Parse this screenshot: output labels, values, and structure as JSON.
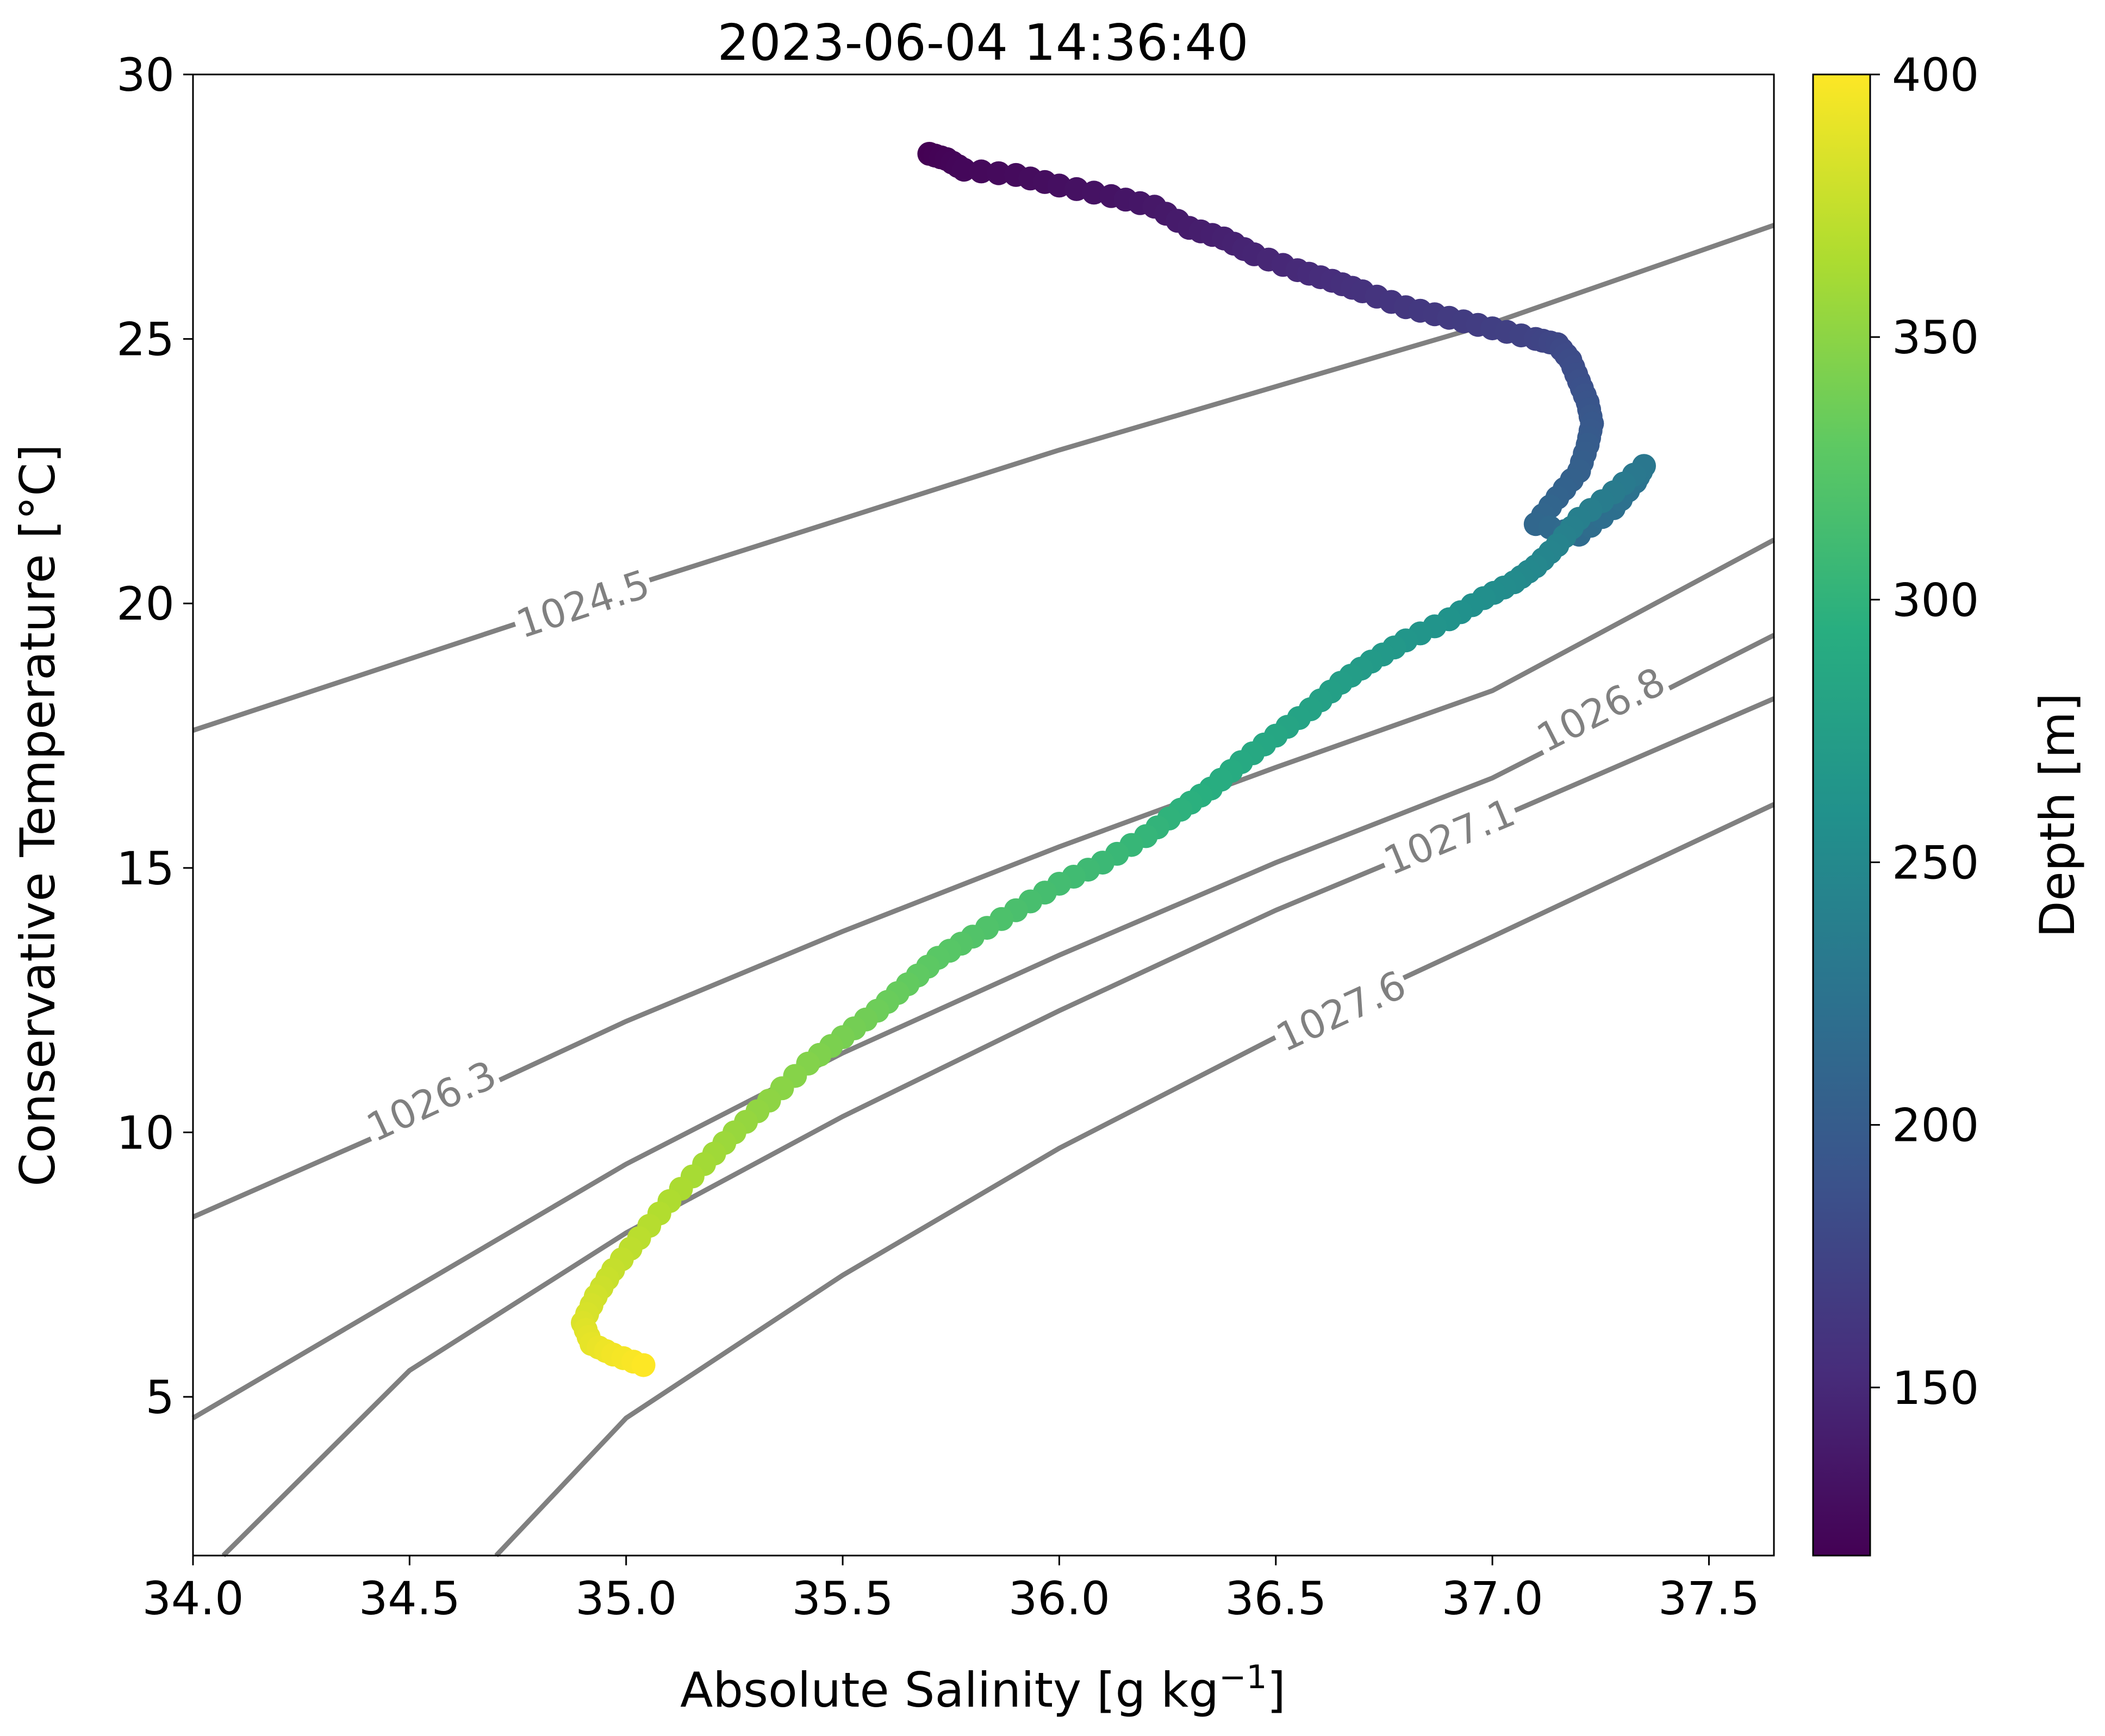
{
  "chart_data": {
    "type": "scatter",
    "title": "2023-06-04 14:36:40",
    "xlabel": "Absolute Salinity [g kg",
    "xlabel_sup": "−1",
    "xlabel_end": "]",
    "ylabel": "Conservative Temperature [°C]",
    "xlim": [
      34.0,
      37.65
    ],
    "ylim": [
      2.0,
      30.0
    ],
    "xticks": [
      34.0,
      34.5,
      35.0,
      35.5,
      36.0,
      36.5,
      37.0,
      37.5
    ],
    "xtick_labels": [
      "34.0",
      "34.5",
      "35.0",
      "35.5",
      "36.0",
      "36.5",
      "37.0",
      "37.5"
    ],
    "yticks": [
      5,
      10,
      15,
      20,
      25,
      30
    ],
    "ytick_labels": [
      "5",
      "10",
      "15",
      "20",
      "25",
      "30"
    ],
    "grid": false,
    "colorbar": {
      "label": "Depth [m]",
      "colormap": "viridis",
      "range": [
        118,
        400
      ],
      "ticks": [
        150,
        200,
        250,
        300,
        350,
        400
      ],
      "tick_labels": [
        "150",
        "200",
        "250",
        "300",
        "350",
        "400"
      ]
    },
    "isopycnals": [
      {
        "label": "1024.5",
        "points": [
          [
            34.0,
            17.6
          ],
          [
            34.5,
            18.95
          ],
          [
            35.0,
            20.3
          ],
          [
            35.5,
            21.6
          ],
          [
            36.0,
            22.9
          ],
          [
            36.5,
            24.1
          ],
          [
            37.0,
            25.3
          ],
          [
            37.65,
            27.15
          ]
        ],
        "label_at": [
          34.9,
          20.0
        ]
      },
      {
        "label": "1026.3",
        "points": [
          [
            34.0,
            8.4
          ],
          [
            34.5,
            10.2
          ],
          [
            35.0,
            12.1
          ],
          [
            35.5,
            13.8
          ],
          [
            36.0,
            15.4
          ],
          [
            36.5,
            16.9
          ],
          [
            37.0,
            18.35
          ],
          [
            37.65,
            21.2
          ]
        ],
        "label_at": [
          34.55,
          10.6
        ]
      },
      {
        "label": "1026.8",
        "points": [
          [
            34.0,
            4.6
          ],
          [
            34.5,
            7.0
          ],
          [
            35.0,
            9.4
          ],
          [
            35.5,
            11.5
          ],
          [
            36.0,
            13.35
          ],
          [
            36.5,
            15.1
          ],
          [
            37.0,
            16.7
          ],
          [
            37.65,
            19.4
          ]
        ],
        "label_at": [
          37.25,
          18.0
        ]
      },
      {
        "label": "1027.1",
        "points": [
          [
            34.07,
            2.0
          ],
          [
            34.5,
            5.5
          ],
          [
            35.0,
            8.1
          ],
          [
            35.5,
            10.3
          ],
          [
            36.0,
            12.3
          ],
          [
            36.5,
            14.2
          ],
          [
            37.0,
            15.9
          ],
          [
            37.65,
            18.2
          ]
        ],
        "label_at": [
          36.9,
          15.6
        ]
      },
      {
        "label": "1027.6",
        "points": [
          [
            34.7,
            2.0
          ],
          [
            35.0,
            4.6
          ],
          [
            35.5,
            7.3
          ],
          [
            36.0,
            9.7
          ],
          [
            36.5,
            11.8
          ],
          [
            37.0,
            13.7
          ],
          [
            37.65,
            16.2
          ]
        ],
        "label_at": [
          36.65,
          12.3
        ]
      }
    ],
    "profile": {
      "name": "",
      "depth_range": [
        118,
        400
      ],
      "points": [
        [
          35.7,
          28.5
        ],
        [
          35.74,
          28.4
        ],
        [
          35.78,
          28.2
        ],
        [
          35.9,
          28.1
        ],
        [
          36.0,
          27.9
        ],
        [
          36.12,
          27.7
        ],
        [
          36.22,
          27.5
        ],
        [
          36.3,
          27.1
        ],
        [
          36.38,
          26.9
        ],
        [
          36.45,
          26.6
        ],
        [
          36.55,
          26.3
        ],
        [
          36.63,
          26.1
        ],
        [
          36.7,
          25.9
        ],
        [
          36.8,
          25.6
        ],
        [
          36.9,
          25.4
        ],
        [
          37.0,
          25.2
        ],
        [
          37.1,
          25.0
        ],
        [
          37.15,
          24.9
        ],
        [
          37.18,
          24.6
        ],
        [
          37.2,
          24.2
        ],
        [
          37.22,
          23.8
        ],
        [
          37.23,
          23.4
        ],
        [
          37.22,
          23.0
        ],
        [
          37.2,
          22.5
        ],
        [
          37.15,
          22.0
        ],
        [
          37.1,
          21.5
        ],
        [
          37.2,
          21.3
        ],
        [
          37.28,
          21.8
        ],
        [
          37.33,
          22.3
        ],
        [
          37.35,
          22.6
        ],
        [
          37.28,
          22.1
        ],
        [
          37.2,
          21.6
        ],
        [
          37.15,
          21.1
        ],
        [
          37.1,
          20.7
        ],
        [
          37.05,
          20.4
        ],
        [
          36.98,
          20.1
        ],
        [
          36.9,
          19.7
        ],
        [
          36.8,
          19.3
        ],
        [
          36.72,
          18.9
        ],
        [
          36.65,
          18.5
        ],
        [
          36.58,
          18.0
        ],
        [
          36.5,
          17.5
        ],
        [
          36.42,
          17.0
        ],
        [
          36.35,
          16.5
        ],
        [
          36.28,
          16.1
        ],
        [
          36.2,
          15.6
        ],
        [
          36.1,
          15.1
        ],
        [
          36.0,
          14.7
        ],
        [
          35.9,
          14.2
        ],
        [
          35.8,
          13.7
        ],
        [
          35.72,
          13.3
        ],
        [
          35.65,
          12.8
        ],
        [
          35.58,
          12.3
        ],
        [
          35.5,
          11.8
        ],
        [
          35.42,
          11.3
        ],
        [
          35.33,
          10.6
        ],
        [
          35.25,
          10.0
        ],
        [
          35.18,
          9.4
        ],
        [
          35.1,
          8.7
        ],
        [
          35.03,
          8.0
        ],
        [
          34.97,
          7.4
        ],
        [
          34.93,
          6.9
        ],
        [
          34.9,
          6.4
        ],
        [
          34.92,
          6.0
        ],
        [
          34.97,
          5.8
        ],
        [
          35.04,
          5.6
        ]
      ]
    }
  }
}
